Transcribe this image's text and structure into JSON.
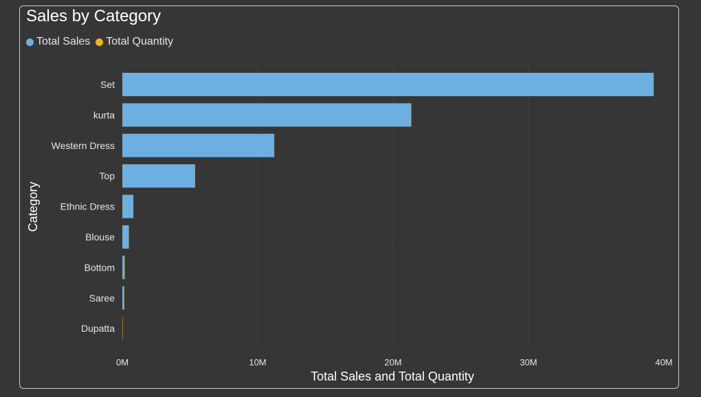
{
  "colors": {
    "background": "#363636",
    "total_sales": "#6cb0e1",
    "total_quantity": "#f7b21f",
    "text": "#e6e6e6",
    "title": "#ffffff",
    "grid": "#5a5a5a"
  },
  "chart_data": {
    "type": "bar",
    "orientation": "horizontal",
    "title": "Sales by Category",
    "xlabel": "Total Sales and Total Quantity",
    "ylabel": "Category",
    "categories": [
      "Set",
      "kurta",
      "Western Dress",
      "Top",
      "Ethnic Dress",
      "Blouse",
      "Bottom",
      "Saree",
      "Dupatta"
    ],
    "series": [
      {
        "name": "Total Sales",
        "values": [
          39200000,
          21300000,
          11200000,
          5350000,
          790000,
          460000,
          150000,
          120000,
          1000
        ]
      },
      {
        "name": "Total Quantity",
        "values": [
          45000,
          44000,
          13500,
          10500,
          1100,
          900,
          1200,
          160,
          3
        ]
      }
    ],
    "xlim": [
      0,
      40000000
    ],
    "xticks": [
      0,
      10000000,
      20000000,
      30000000,
      40000000
    ],
    "xtick_labels": [
      "0M",
      "10M",
      "20M",
      "30M",
      "40M"
    ],
    "grid": "vertical dotted",
    "legend_position": "top-left"
  }
}
